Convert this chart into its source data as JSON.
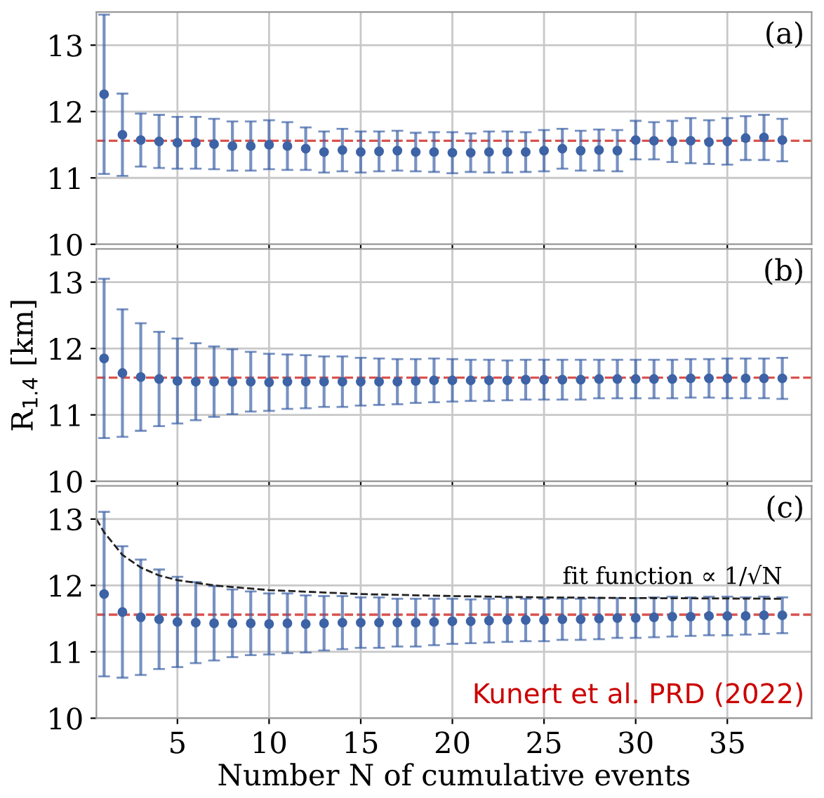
{
  "chart_data": [
    {
      "type": "scatter",
      "xlim": [
        0.58,
        39.6
      ],
      "xticks": [
        5,
        10,
        15,
        20,
        25,
        30,
        35
      ],
      "ylim": [
        10,
        13.5
      ],
      "yticks": [
        10,
        11,
        12,
        13
      ],
      "grid": true,
      "tick_labels": "y",
      "marker": "circle",
      "x": [
        1,
        2,
        3,
        4,
        5,
        6,
        7,
        8,
        9,
        10,
        11,
        12,
        13,
        14,
        15,
        16,
        17,
        18,
        19,
        20,
        21,
        22,
        23,
        24,
        25,
        26,
        27,
        28,
        29,
        30,
        31,
        32,
        33,
        34,
        35,
        36,
        37,
        38
      ],
      "series": [
        {
          "color": "#3d63a6",
          "values": [
            12.26,
            11.65,
            11.57,
            11.55,
            11.53,
            11.53,
            11.51,
            11.48,
            11.48,
            11.5,
            11.48,
            11.44,
            11.39,
            11.42,
            11.39,
            11.4,
            11.41,
            11.39,
            11.39,
            11.38,
            11.38,
            11.39,
            11.39,
            11.39,
            11.41,
            11.44,
            11.41,
            11.42,
            11.41,
            11.57,
            11.56,
            11.55,
            11.56,
            11.54,
            11.55,
            11.6,
            11.61,
            11.57
          ],
          "errors": [
            1.2,
            0.62,
            0.4,
            0.4,
            0.39,
            0.39,
            0.38,
            0.37,
            0.37,
            0.37,
            0.36,
            0.32,
            0.31,
            0.32,
            0.31,
            0.3,
            0.3,
            0.29,
            0.3,
            0.31,
            0.29,
            0.31,
            0.31,
            0.3,
            0.31,
            0.3,
            0.3,
            0.31,
            0.31,
            0.29,
            0.28,
            0.31,
            0.34,
            0.33,
            0.35,
            0.33,
            0.34,
            0.32
          ]
        }
      ],
      "ref_lines": [
        {
          "axis": "y",
          "value": 11.56,
          "color": "#d9534f",
          "line_style": "dashed"
        }
      ],
      "annotations": [
        "(a)"
      ]
    },
    {
      "type": "scatter",
      "xlim": [
        0.58,
        39.6
      ],
      "xticks": [
        5,
        10,
        15,
        20,
        25,
        30,
        35
      ],
      "ylim": [
        10,
        13.5
      ],
      "yticks": [
        10,
        11,
        12,
        13
      ],
      "grid": true,
      "tick_labels": "y",
      "marker": "circle",
      "ylabel": "R$_{1.4}$ [km]",
      "x": [
        1,
        2,
        3,
        4,
        5,
        6,
        7,
        8,
        9,
        10,
        11,
        12,
        13,
        14,
        15,
        16,
        17,
        18,
        19,
        20,
        21,
        22,
        23,
        24,
        25,
        26,
        27,
        28,
        29,
        30,
        31,
        32,
        33,
        34,
        35,
        36,
        37,
        38
      ],
      "series": [
        {
          "color": "#3d63a6",
          "values": [
            11.85,
            11.63,
            11.57,
            11.54,
            11.51,
            11.5,
            11.5,
            11.5,
            11.5,
            11.49,
            11.5,
            11.5,
            11.5,
            11.5,
            11.5,
            11.5,
            11.5,
            11.51,
            11.52,
            11.52,
            11.52,
            11.52,
            11.52,
            11.53,
            11.53,
            11.53,
            11.53,
            11.54,
            11.54,
            11.54,
            11.54,
            11.54,
            11.55,
            11.55,
            11.55,
            11.55,
            11.55,
            11.55
          ],
          "errors": [
            1.2,
            0.96,
            0.81,
            0.71,
            0.64,
            0.58,
            0.53,
            0.49,
            0.45,
            0.43,
            0.41,
            0.4,
            0.38,
            0.38,
            0.36,
            0.35,
            0.34,
            0.33,
            0.33,
            0.32,
            0.31,
            0.31,
            0.3,
            0.3,
            0.3,
            0.3,
            0.3,
            0.29,
            0.29,
            0.29,
            0.29,
            0.29,
            0.29,
            0.29,
            0.3,
            0.3,
            0.3,
            0.31
          ]
        }
      ],
      "ref_lines": [
        {
          "axis": "y",
          "value": 11.56,
          "color": "#d9534f",
          "line_style": "dashed"
        }
      ],
      "annotations": [
        "(b)"
      ]
    },
    {
      "type": "scatter",
      "xlim": [
        0.58,
        39.6
      ],
      "xticks": [
        5,
        10,
        15,
        20,
        25,
        30,
        35
      ],
      "ylim": [
        10,
        13.5
      ],
      "yticks": [
        10,
        11,
        12,
        13
      ],
      "grid": true,
      "marker": "circle",
      "xlabel": "Number N of cumulative events",
      "x": [
        1,
        2,
        3,
        4,
        5,
        6,
        7,
        8,
        9,
        10,
        11,
        12,
        13,
        14,
        15,
        16,
        17,
        18,
        19,
        20,
        21,
        22,
        23,
        24,
        25,
        26,
        27,
        28,
        29,
        30,
        31,
        32,
        33,
        34,
        35,
        36,
        37,
        38
      ],
      "series": [
        {
          "color": "#3d63a6",
          "values": [
            11.87,
            11.6,
            11.52,
            11.49,
            11.45,
            11.44,
            11.43,
            11.43,
            11.43,
            11.42,
            11.43,
            11.42,
            11.43,
            11.44,
            11.44,
            11.44,
            11.44,
            11.44,
            11.45,
            11.46,
            11.46,
            11.47,
            11.48,
            11.48,
            11.48,
            11.49,
            11.49,
            11.5,
            11.51,
            11.51,
            11.52,
            11.53,
            11.53,
            11.54,
            11.54,
            11.54,
            11.55,
            11.55
          ],
          "errors": [
            1.24,
            0.99,
            0.87,
            0.75,
            0.68,
            0.61,
            0.56,
            0.51,
            0.48,
            0.46,
            0.45,
            0.43,
            0.41,
            0.4,
            0.38,
            0.38,
            0.36,
            0.36,
            0.35,
            0.34,
            0.33,
            0.33,
            0.33,
            0.32,
            0.32,
            0.31,
            0.31,
            0.31,
            0.3,
            0.3,
            0.3,
            0.3,
            0.29,
            0.29,
            0.29,
            0.28,
            0.28,
            0.27
          ]
        },
        {
          "type": "line",
          "name": "fit function ∝ 1/√N",
          "color": "#222222",
          "line_style": "dashed",
          "marker": "none",
          "x": [
            0.58,
            1,
            2,
            3,
            4,
            5,
            7,
            10,
            15,
            20,
            25,
            30,
            38
          ],
          "values": [
            13.0,
            12.8,
            12.46,
            12.27,
            12.15,
            12.08,
            12.0,
            11.93,
            11.87,
            11.84,
            11.82,
            11.81,
            11.8
          ]
        }
      ],
      "ref_lines": [
        {
          "axis": "y",
          "value": 11.56,
          "color": "#d9534f",
          "line_style": "dashed"
        }
      ],
      "annotations": [
        "(c)",
        "Kunert et al. PRD (2022)"
      ]
    }
  ]
}
